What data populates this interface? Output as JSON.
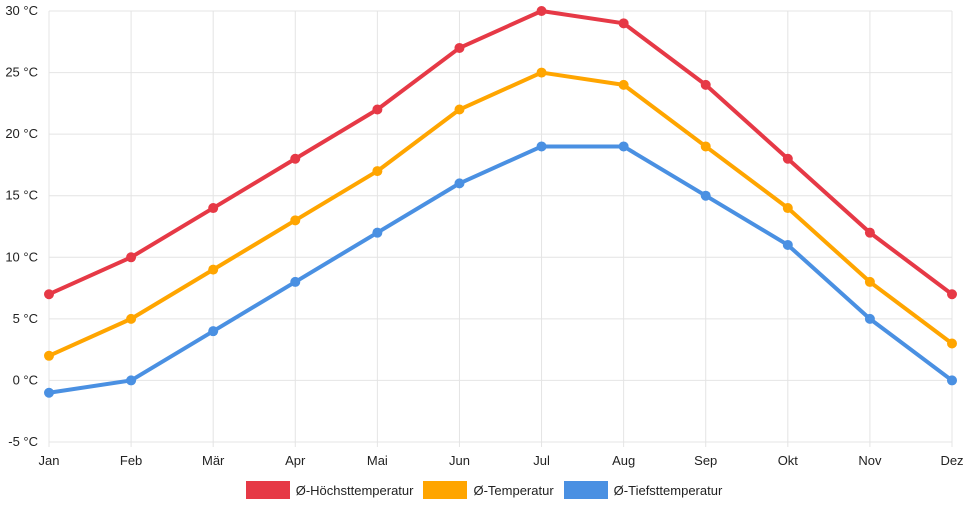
{
  "chart_data": {
    "type": "line",
    "title": "",
    "xlabel": "",
    "ylabel": "",
    "categories": [
      "Jan",
      "Feb",
      "Mär",
      "Apr",
      "Mai",
      "Jun",
      "Jul",
      "Aug",
      "Sep",
      "Okt",
      "Nov",
      "Dez"
    ],
    "ylim": [
      -5,
      30
    ],
    "yticks": [
      -5,
      0,
      5,
      10,
      15,
      20,
      25,
      30
    ],
    "ytick_suffix": " °C",
    "ytick_labels": [
      "-5 °C",
      "0 °C",
      "5 °C",
      "10 °C",
      "15 °C",
      "20 °C",
      "25 °C",
      "30 °C"
    ],
    "grid": true,
    "legend_position": "bottom",
    "series": [
      {
        "name": "Ø-Höchsttemperatur",
        "color": "#e63946",
        "values": [
          7,
          10,
          14,
          18,
          22,
          27,
          30,
          29,
          24,
          18,
          12,
          7
        ]
      },
      {
        "name": "Ø-Temperatur",
        "color": "#ffa500",
        "values": [
          2,
          5,
          9,
          13,
          17,
          22,
          25,
          24,
          19,
          14,
          8,
          3
        ]
      },
      {
        "name": "Ø-Tiefsttemperatur",
        "color": "#4a90e2",
        "values": [
          -1,
          0,
          4,
          8,
          12,
          16,
          19,
          19,
          15,
          11,
          5,
          0
        ]
      }
    ]
  }
}
